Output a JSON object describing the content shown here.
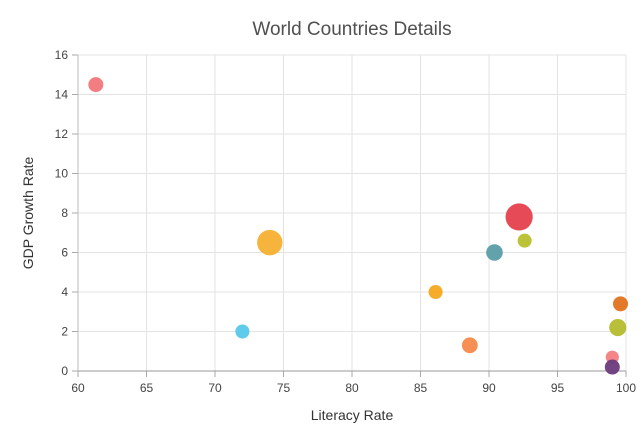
{
  "chart_data": {
    "type": "scatter",
    "title": "World Countries Details",
    "xlabel": "Literacy Rate",
    "ylabel": "GDP Growth Rate",
    "xlim": [
      60,
      100
    ],
    "ylim": [
      0,
      16
    ],
    "xticks": [
      60,
      65,
      70,
      75,
      80,
      85,
      90,
      95,
      100
    ],
    "yticks": [
      0,
      2,
      4,
      6,
      8,
      10,
      12,
      14,
      16
    ],
    "grid": true,
    "bubble": true,
    "points": [
      {
        "x": 61.3,
        "y": 14.5,
        "size": 0.9,
        "color": "#f2777a"
      },
      {
        "x": 72.0,
        "y": 2.0,
        "size": 0.8,
        "color": "#54c8e8"
      },
      {
        "x": 74.0,
        "y": 6.5,
        "size": 2.6,
        "color": "#f5b031"
      },
      {
        "x": 86.1,
        "y": 4.0,
        "size": 0.8,
        "color": "#f5a71e"
      },
      {
        "x": 88.6,
        "y": 1.3,
        "size": 1.0,
        "color": "#f5894b"
      },
      {
        "x": 90.4,
        "y": 6.0,
        "size": 1.1,
        "color": "#5a9ea6"
      },
      {
        "x": 92.2,
        "y": 7.8,
        "size": 3.0,
        "color": "#e5404e"
      },
      {
        "x": 92.6,
        "y": 6.6,
        "size": 0.8,
        "color": "#b9c02e"
      },
      {
        "x": 99.0,
        "y": 0.7,
        "size": 0.7,
        "color": "#f37e82"
      },
      {
        "x": 99.0,
        "y": 0.2,
        "size": 0.9,
        "color": "#6b3a7c"
      },
      {
        "x": 99.4,
        "y": 2.2,
        "size": 1.2,
        "color": "#b5bc2e"
      },
      {
        "x": 99.6,
        "y": 3.4,
        "size": 0.9,
        "color": "#e0731f"
      }
    ]
  }
}
